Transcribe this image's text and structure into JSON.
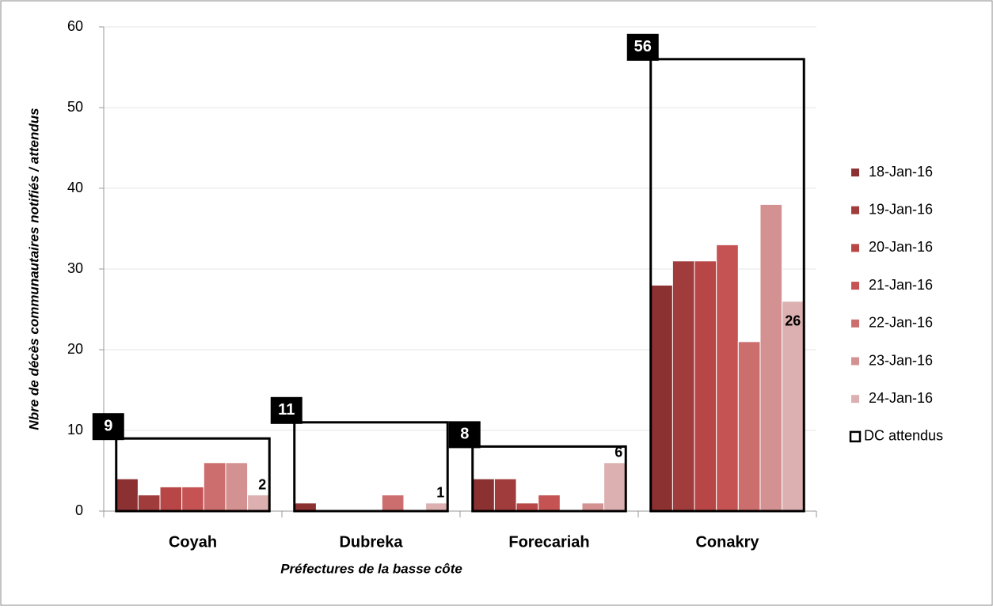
{
  "chart_data": {
    "type": "bar",
    "x_label": "Préfectures de la basse côte",
    "y_label": "Nbre de décès communautaires notifiés / attendus",
    "categories": [
      "Coyah",
      "Dubreka",
      "Forecariah",
      "Conakry"
    ],
    "series": [
      {
        "name": "18-Jan-16",
        "color": "#8c3131",
        "values": [
          4,
          1,
          4,
          28
        ]
      },
      {
        "name": "19-Jan-16",
        "color": "#a03c3c",
        "values": [
          2,
          0,
          4,
          31
        ]
      },
      {
        "name": "20-Jan-16",
        "color": "#b84646",
        "values": [
          3,
          0,
          1,
          31
        ]
      },
      {
        "name": "21-Jan-16",
        "color": "#c65353",
        "values": [
          3,
          0,
          2,
          33
        ]
      },
      {
        "name": "22-Jan-16",
        "color": "#cc6e6e",
        "values": [
          6,
          2,
          0,
          21
        ]
      },
      {
        "name": "23-Jan-16",
        "color": "#d49191",
        "values": [
          6,
          0,
          1,
          38
        ]
      },
      {
        "name": "24-Jan-16",
        "color": "#dcb0b0",
        "values": [
          2,
          1,
          6,
          26
        ],
        "data_labels": true
      }
    ],
    "expected": {
      "name": "DC attendus",
      "color": "#000000",
      "values": [
        9,
        11,
        8,
        56
      ]
    },
    "ylim": [
      0,
      60
    ],
    "yticks": [
      0,
      10,
      20,
      30,
      40,
      50,
      60
    ],
    "grid": true,
    "legend": "right"
  }
}
